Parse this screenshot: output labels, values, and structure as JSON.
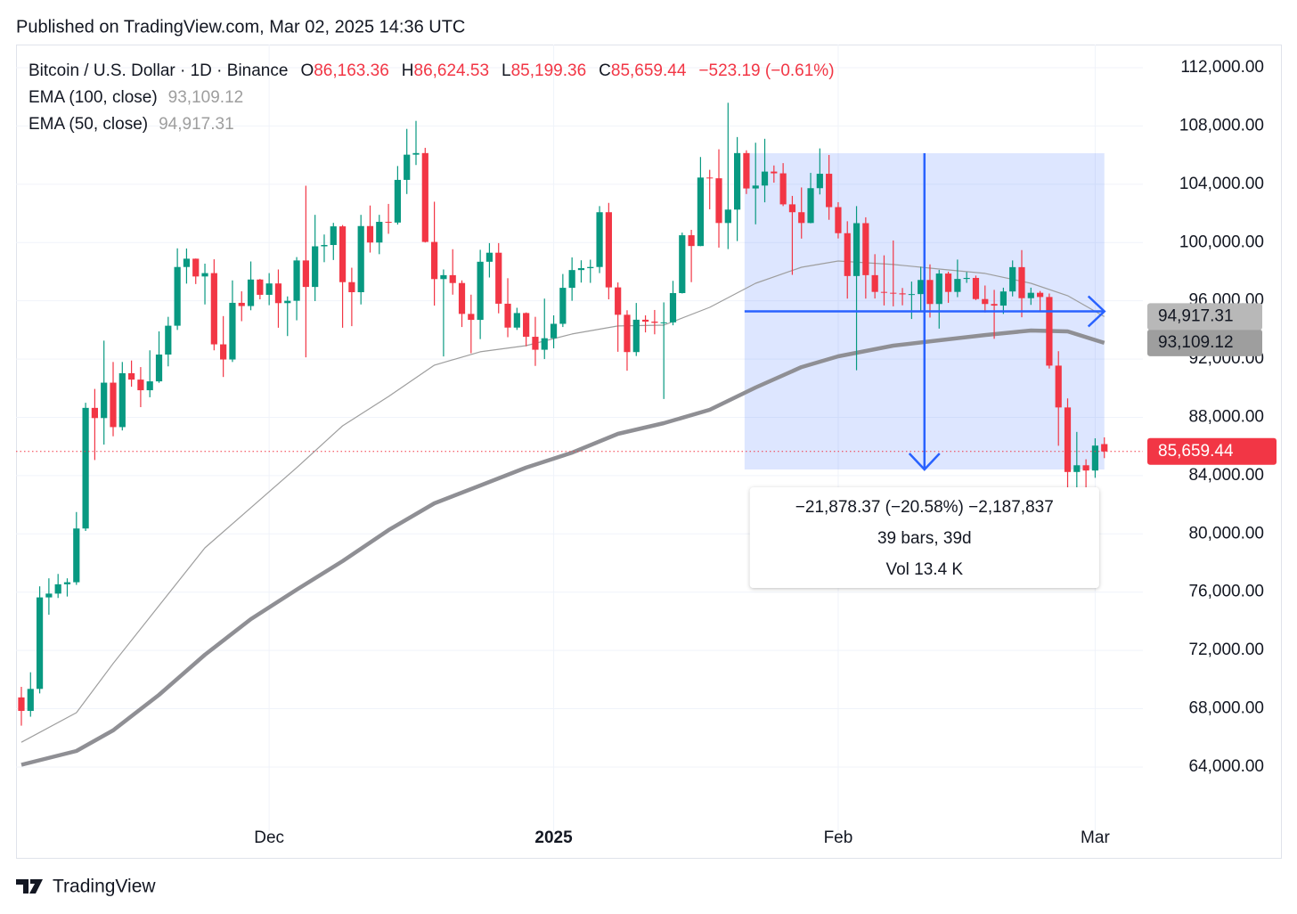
{
  "header": {
    "published": "Published on TradingView.com, Mar 02, 2025 14:36 UTC"
  },
  "footer": {
    "brand": "TradingView"
  },
  "chart_data": {
    "type": "candlestick",
    "legend": {
      "symbol": "Bitcoin / U.S. Dollar · 1D · Binance",
      "fields": [
        {
          "key": "O",
          "label": "86,163.36"
        },
        {
          "key": "H",
          "label": "86,624.53"
        },
        {
          "key": "L",
          "label": "85,199.36"
        },
        {
          "key": "C",
          "label": "85,659.44"
        }
      ],
      "change": "−523.19 (−0.61%)"
    },
    "up_color": "#089981",
    "down_color": "#f23645",
    "open": [
      68775,
      67850,
      69360,
      75640,
      75900,
      76540,
      76680,
      80370,
      88650,
      87950,
      90380,
      87330,
      91030,
      90590,
      89860,
      90470,
      92310,
      94290,
      98320,
      98890,
      97670,
      97900,
      93010,
      91970,
      95860,
      95640,
      97460,
      96410,
      97190,
      95840,
      96000,
      98770,
      96950,
      99740,
      99830,
      101110,
      97280,
      96590,
      101130,
      100000,
      101420,
      101370,
      104300,
      106030,
      106140,
      100040,
      97490,
      97760,
      97220,
      95100,
      94690,
      98680,
      99300,
      95800,
      94160,
      95160,
      93530,
      92640,
      93430,
      94420,
      96890,
      98110,
      98240,
      98320,
      102080,
      96920,
      95040,
      92480,
      94700,
      94570,
      94490,
      94520,
      96530,
      100500,
      99760,
      104460,
      104410,
      101340,
      102260,
      106140,
      103710,
      103910,
      104870,
      104750,
      102620,
      102080,
      101340,
      103730,
      104720,
      102430,
      100640,
      97700,
      101330,
      97760,
      96610,
      96550,
      96510,
      96440,
      96460,
      97430,
      95780,
      97870,
      96610,
      97500,
      97570,
      96120,
      95780,
      95670,
      96640,
      98310,
      96180,
      96550,
      96260,
      91550,
      88680,
      84250,
      84710,
      84350,
      86163.36
    ],
    "high": [
      69500,
      70500,
      76400,
      76950,
      77250,
      76950,
      81500,
      89000,
      89950,
      93265,
      91800,
      91800,
      91900,
      91450,
      92600,
      93900,
      94900,
      99600,
      99590,
      98900,
      98550,
      98850,
      94950,
      97400,
      96650,
      98700,
      97500,
      97900,
      98150,
      96300,
      99000,
      103900,
      101900,
      100550,
      101350,
      101200,
      98270,
      101900,
      102540,
      101900,
      102650,
      105250,
      107800,
      108350,
      106500,
      102800,
      98150,
      99540,
      97400,
      96420,
      99500,
      99960,
      99960,
      97550,
      95520,
      95200,
      94900,
      96150,
      95000,
      97840,
      98980,
      98780,
      98820,
      102500,
      102720,
      97260,
      95350,
      95850,
      95000,
      95370,
      95890,
      97370,
      100680,
      100870,
      105870,
      104990,
      106400,
      109590,
      107240,
      106330,
      106850,
      107120,
      105290,
      105450,
      103200,
      103780,
      104780,
      106460,
      106010,
      102770,
      101460,
      102500,
      101730,
      99200,
      99120,
      100140,
      96880,
      97320,
      98340,
      98500,
      98120,
      98000,
      98830,
      97970,
      97730,
      97050,
      96750,
      96900,
      98770,
      99480,
      96900,
      96670,
      96500,
      92540,
      89300,
      87000,
      85120,
      86560,
      86624.53
    ],
    "low": [
      66835,
      67450,
      69050,
      74450,
      75600,
      75700,
      76500,
      80200,
      85070,
      86130,
      86700,
      87100,
      90100,
      88700,
      89380,
      90370,
      91500,
      94000,
      97180,
      97150,
      95750,
      92600,
      90770,
      91800,
      94600,
      95350,
      96100,
      95700,
      94150,
      93580,
      94660,
      92120,
      95980,
      98650,
      98800,
      94150,
      94260,
      95750,
      99310,
      99200,
      100600,
      101230,
      103330,
      105320,
      100000,
      95670,
      92180,
      96420,
      94200,
      92400,
      93370,
      97600,
      95140,
      93500,
      94000,
      92880,
      91530,
      92000,
      92740,
      94200,
      96000,
      97250,
      97230,
      97900,
      96100,
      92500,
      91200,
      92210,
      93830,
      93700,
      89260,
      94320,
      96500,
      97280,
      99750,
      102280,
      99650,
      99550,
      100100,
      103330,
      101250,
      102760,
      104110,
      102500,
      97780,
      100270,
      101320,
      103300,
      101560,
      100280,
      96150,
      91230,
      96150,
      96160,
      95680,
      95620,
      95690,
      94750,
      95260,
      94850,
      94090,
      95860,
      96250,
      97230,
      96050,
      95200,
      93390,
      95100,
      96300,
      94870,
      95720,
      95270,
      91350,
      86050,
      82260,
      82790,
      78260,
      83850,
      85199.36
    ],
    "close": [
      67850,
      69360,
      75640,
      75900,
      76540,
      76680,
      80370,
      88650,
      87950,
      90380,
      87330,
      91030,
      90590,
      89860,
      90470,
      92310,
      94290,
      98320,
      98890,
      97670,
      97900,
      93010,
      91970,
      95860,
      95640,
      97460,
      96410,
      97190,
      95840,
      96000,
      98770,
      96950,
      99740,
      99830,
      101110,
      97280,
      96590,
      101130,
      100000,
      101420,
      101370,
      104300,
      106030,
      106140,
      100040,
      97490,
      97760,
      97220,
      95100,
      94690,
      98680,
      99300,
      95800,
      94160,
      95160,
      93530,
      92640,
      93430,
      94420,
      96890,
      98110,
      98240,
      98320,
      102080,
      96920,
      95040,
      92480,
      94700,
      94570,
      94490,
      94520,
      96530,
      100500,
      99760,
      104460,
      104410,
      101340,
      102260,
      106140,
      103710,
      103910,
      104870,
      104750,
      102620,
      102080,
      101340,
      103730,
      104720,
      102430,
      100640,
      97700,
      101330,
      97760,
      96610,
      96550,
      96510,
      96440,
      96460,
      97430,
      95780,
      97870,
      96610,
      97500,
      97570,
      96120,
      95780,
      95670,
      96640,
      98310,
      96180,
      96550,
      96260,
      91550,
      88680,
      84250,
      84710,
      84350,
      86060,
      85659.44
    ],
    "last_price": {
      "value": 85659.44,
      "label": "85,659.44"
    },
    "series": [
      {
        "name": "EMA (100, close)",
        "color": "#8f8f94",
        "width": 4.5,
        "last": {
          "value": 93109.12,
          "label": "93,109.12"
        },
        "label_bg": "#9e9e9e",
        "x": [
          0,
          6,
          10,
          15,
          20,
          25,
          30,
          35,
          40,
          45,
          50,
          55,
          60,
          65,
          70,
          75,
          80,
          85,
          89,
          95,
          100,
          105,
          110,
          114,
          118
        ],
        "values": [
          64150,
          65100,
          66510,
          68950,
          71700,
          74150,
          76170,
          78130,
          80260,
          82100,
          83320,
          84550,
          85580,
          86870,
          87600,
          88520,
          90050,
          91450,
          92190,
          92920,
          93290,
          93650,
          93960,
          93900,
          93109.12
        ]
      },
      {
        "name": "EMA (50, close)",
        "color": "#9e9e9e",
        "width": 1.2,
        "last": {
          "value": 94917.31,
          "label": "94,917.31"
        },
        "label_bg": "#b8b8b8",
        "x": [
          0,
          6,
          10,
          15,
          20,
          25,
          30,
          35,
          40,
          45,
          50,
          55,
          60,
          65,
          70,
          75,
          80,
          85,
          89,
          95,
          100,
          105,
          110,
          114,
          118
        ],
        "values": [
          65700,
          67730,
          71100,
          75070,
          79040,
          81800,
          84550,
          87420,
          89430,
          91580,
          92500,
          92920,
          93720,
          94270,
          94330,
          95550,
          97200,
          98300,
          98730,
          98490,
          98180,
          97880,
          97200,
          96350,
          94917.31
        ]
      }
    ],
    "measure": {
      "from_index": 78.8,
      "to_index": 118,
      "top": 106130,
      "bottom": 84420,
      "color": "#2962ff",
      "lines": [
        "−21,878.37 (−20.58%) −2,187,837",
        "39 bars, 39d",
        "Vol 13.4 K"
      ]
    },
    "xlim": [
      -0.58,
      122.2
    ],
    "xticks": [
      {
        "value": 27,
        "label": "Dec"
      },
      {
        "value": 58,
        "label": "2025",
        "bold": true
      },
      {
        "value": 89,
        "label": "Feb"
      },
      {
        "value": 117,
        "label": "Mar"
      }
    ],
    "ylim": [
      57760,
      113590
    ],
    "yticks": [
      {
        "value": 64000,
        "label": "64,000.00"
      },
      {
        "value": 68000,
        "label": "68,000.00"
      },
      {
        "value": 72000,
        "label": "72,000.00"
      },
      {
        "value": 76000,
        "label": "76,000.00"
      },
      {
        "value": 80000,
        "label": "80,000.00"
      },
      {
        "value": 84000,
        "label": "84,000.00"
      },
      {
        "value": 88000,
        "label": "88,000.00"
      },
      {
        "value": 92000,
        "label": "92,000.00"
      },
      {
        "value": 96000,
        "label": "96,000.00"
      },
      {
        "value": 100000,
        "label": "100,000.00"
      },
      {
        "value": 104000,
        "label": "104,000.00"
      },
      {
        "value": 108000,
        "label": "108,000.00"
      },
      {
        "value": 112000,
        "label": "112,000.00"
      }
    ],
    "grid": true
  }
}
